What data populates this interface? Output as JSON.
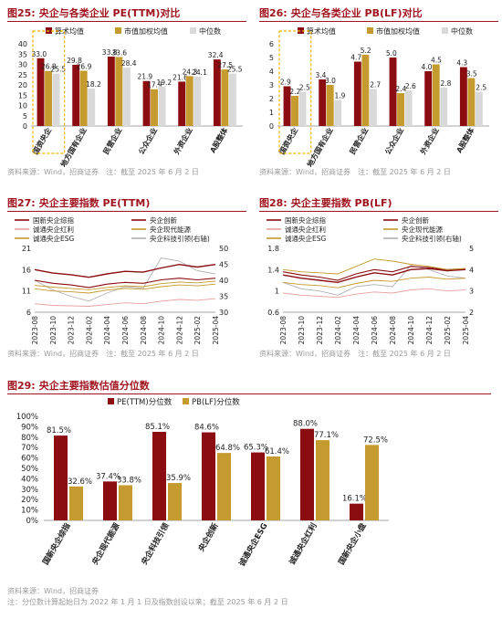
{
  "colors": {
    "dark_red": "#8b0d12",
    "gold": "#c59a2e",
    "light_gray": "#d9d9d9",
    "gray_line": "#b0b0b0",
    "pink": "#e8a0a0",
    "title_red": "#a0141e",
    "highlight_box": "#f0b400"
  },
  "chart_data": [
    {
      "id": "fig25",
      "type": "bar",
      "number": "图25:",
      "title": "央企与各类企业 PE(TTM)对比",
      "categories": [
        "国资央企",
        "地方国有企业",
        "民营企业",
        "公众企业",
        "外资企业",
        "A股整体"
      ],
      "series": [
        {
          "name": "算术均值",
          "values": [
            33.0,
            29.8,
            33.8,
            21.9,
            21.6,
            32.4
          ]
        },
        {
          "name": "市值加权均值",
          "values": [
            26.8,
            26.9,
            33.6,
            17.9,
            24.3,
            27.5
          ]
        },
        {
          "name": "中位数",
          "values": [
            25.5,
            18.2,
            28.4,
            19.2,
            24.1,
            25.5
          ]
        }
      ],
      "ylim": [
        0,
        40
      ],
      "yticks": [
        0,
        5,
        10,
        15,
        20,
        25,
        30,
        35,
        40
      ],
      "highlight_category": 0,
      "source": "资料来源：Wind，招商证券　注：截至 2025 年 6 月 2 日"
    },
    {
      "id": "fig26",
      "type": "bar",
      "number": "图26:",
      "title": "央企与各类企业 PB(LF)对比",
      "categories": [
        "国资央企",
        "地方国有企业",
        "民营企业",
        "公众企业",
        "外资企业",
        "A股整体"
      ],
      "series": [
        {
          "name": "算术均值",
          "values": [
            2.9,
            3.4,
            4.7,
            5.0,
            4.0,
            4.3
          ]
        },
        {
          "name": "市值加权均值",
          "values": [
            2.2,
            3.0,
            5.2,
            2.4,
            4.5,
            3.5
          ]
        },
        {
          "name": "中位数",
          "values": [
            2.5,
            1.9,
            2.7,
            2.6,
            2.8,
            2.5
          ]
        }
      ],
      "ylim": [
        0,
        6
      ],
      "yticks": [
        0,
        1,
        2,
        3,
        4,
        5,
        6
      ],
      "highlight_category": 0,
      "source": "资料来源：Wind，招商证券　注：截至 2025 年 6 月 2 日"
    },
    {
      "id": "fig27",
      "type": "line",
      "number": "图27:",
      "title": "央企主要指数 PE(TTM)",
      "x": [
        "2023-08",
        "2023-10",
        "2023-12",
        "2024-02",
        "2024-04",
        "2024-06",
        "2024-08",
        "2024-10",
        "2024-12",
        "2025-02",
        "2025-04"
      ],
      "left_ylim": [
        6,
        21
      ],
      "left_yticks": [
        6,
        11,
        16,
        21
      ],
      "right_ylim": [
        30,
        50
      ],
      "right_yticks": [
        30,
        35,
        40,
        45,
        50
      ],
      "series": [
        {
          "name": "国新央企综指",
          "axis": "left",
          "values": [
            16.0,
            15.2,
            14.8,
            14.2,
            15.0,
            15.6,
            15.4,
            16.4,
            17.2,
            16.6,
            17.2
          ]
        },
        {
          "name": "央企创新",
          "axis": "left",
          "values": [
            13.5,
            12.8,
            12.4,
            11.8,
            12.6,
            13.0,
            12.8,
            13.6,
            14.0,
            13.6,
            14.0
          ]
        },
        {
          "name": "诚通央企红利",
          "axis": "left",
          "values": [
            8.0,
            7.6,
            7.5,
            7.4,
            7.8,
            8.2,
            8.0,
            8.6,
            9.0,
            8.8,
            9.2
          ]
        },
        {
          "name": "央企现代能源",
          "axis": "left",
          "values": [
            11.5,
            11.0,
            10.8,
            10.5,
            11.2,
            11.6,
            11.4,
            12.0,
            12.4,
            12.2,
            12.6
          ]
        },
        {
          "name": "诚通央企ESG",
          "axis": "left",
          "values": [
            12.3,
            11.9,
            11.6,
            11.3,
            11.8,
            12.2,
            12.0,
            12.7,
            13.1,
            12.9,
            13.3
          ]
        },
        {
          "name": "央企科技引领(右轴)",
          "axis": "right",
          "values": [
            40.0,
            37.0,
            35.0,
            33.5,
            36.0,
            38.0,
            37.5,
            47.0,
            46.0,
            43.0,
            42.0
          ]
        }
      ],
      "source": "资料来源：Wind，招商证券　注：截至 2025 年 6 月 2 日"
    },
    {
      "id": "fig28",
      "type": "line",
      "number": "图28:",
      "title": "央企主要指数 PB(LF)",
      "x": [
        "2023-08",
        "2023-10",
        "2023-12",
        "2024-02",
        "2024-04",
        "2024-06",
        "2024-08",
        "2024-10",
        "2024-12",
        "2025-02",
        "2025-04"
      ],
      "left_ylim": [
        0.6,
        1.8
      ],
      "left_yticks": [
        0.6,
        1.0,
        1.4,
        1.8
      ],
      "right_ylim": [
        2.0,
        5.0
      ],
      "right_yticks": [
        2.0,
        3.0,
        4.0,
        5.0
      ],
      "series": [
        {
          "name": "国新央企综指",
          "axis": "left",
          "values": [
            1.3,
            1.24,
            1.2,
            1.16,
            1.26,
            1.34,
            1.3,
            1.4,
            1.42,
            1.38,
            1.4
          ]
        },
        {
          "name": "央企创新",
          "axis": "left",
          "values": [
            1.36,
            1.3,
            1.26,
            1.2,
            1.32,
            1.4,
            1.36,
            1.46,
            1.44,
            1.4,
            1.42
          ]
        },
        {
          "name": "诚通央企红利",
          "axis": "left",
          "values": [
            0.96,
            0.92,
            0.9,
            0.88,
            0.94,
            0.98,
            0.96,
            1.02,
            1.04,
            1.0,
            1.02
          ]
        },
        {
          "name": "央企现代能源",
          "axis": "left",
          "values": [
            1.4,
            1.36,
            1.34,
            1.32,
            1.46,
            1.6,
            1.56,
            1.5,
            1.46,
            1.4,
            1.42
          ]
        },
        {
          "name": "诚通央企ESG",
          "axis": "left",
          "values": [
            1.16,
            1.12,
            1.1,
            1.06,
            1.14,
            1.2,
            1.18,
            1.24,
            1.26,
            1.22,
            1.24
          ]
        },
        {
          "name": "央企科技引领(右轴)",
          "axis": "right",
          "values": [
            3.4,
            3.1,
            3.0,
            2.8,
            3.2,
            3.3,
            3.2,
            4.2,
            4.0,
            3.7,
            3.6
          ]
        }
      ],
      "source": "资料来源：Wind，招商证券　注：截至 2025 年 6 月 2 日"
    },
    {
      "id": "fig29",
      "type": "bar",
      "number": "图29:",
      "title": "央企主要指数估值分位数",
      "categories": [
        "国新央企综指",
        "央企现代能源",
        "央企科技引领",
        "央企创新",
        "诚通央企ESG",
        "诚通央企红利",
        "国新央企小盘"
      ],
      "series": [
        {
          "name": "PE(TTM)分位数",
          "values": [
            81.5,
            37.4,
            85.1,
            84.6,
            65.3,
            88.0,
            16.1
          ]
        },
        {
          "name": "PB(LF)分位数",
          "values": [
            32.6,
            33.8,
            35.9,
            64.8,
            61.4,
            77.1,
            72.5
          ]
        }
      ],
      "ylim": [
        0,
        100
      ],
      "yticks": [
        0,
        10,
        20,
        30,
        40,
        50,
        60,
        70,
        80,
        90,
        100
      ],
      "source": "资料来源：Wind，招商证券",
      "note": "注：分位数计算起始日为 2022 年 1 月 1 日及指数创设以来；截至 2025 年 6 月 2 日"
    }
  ]
}
